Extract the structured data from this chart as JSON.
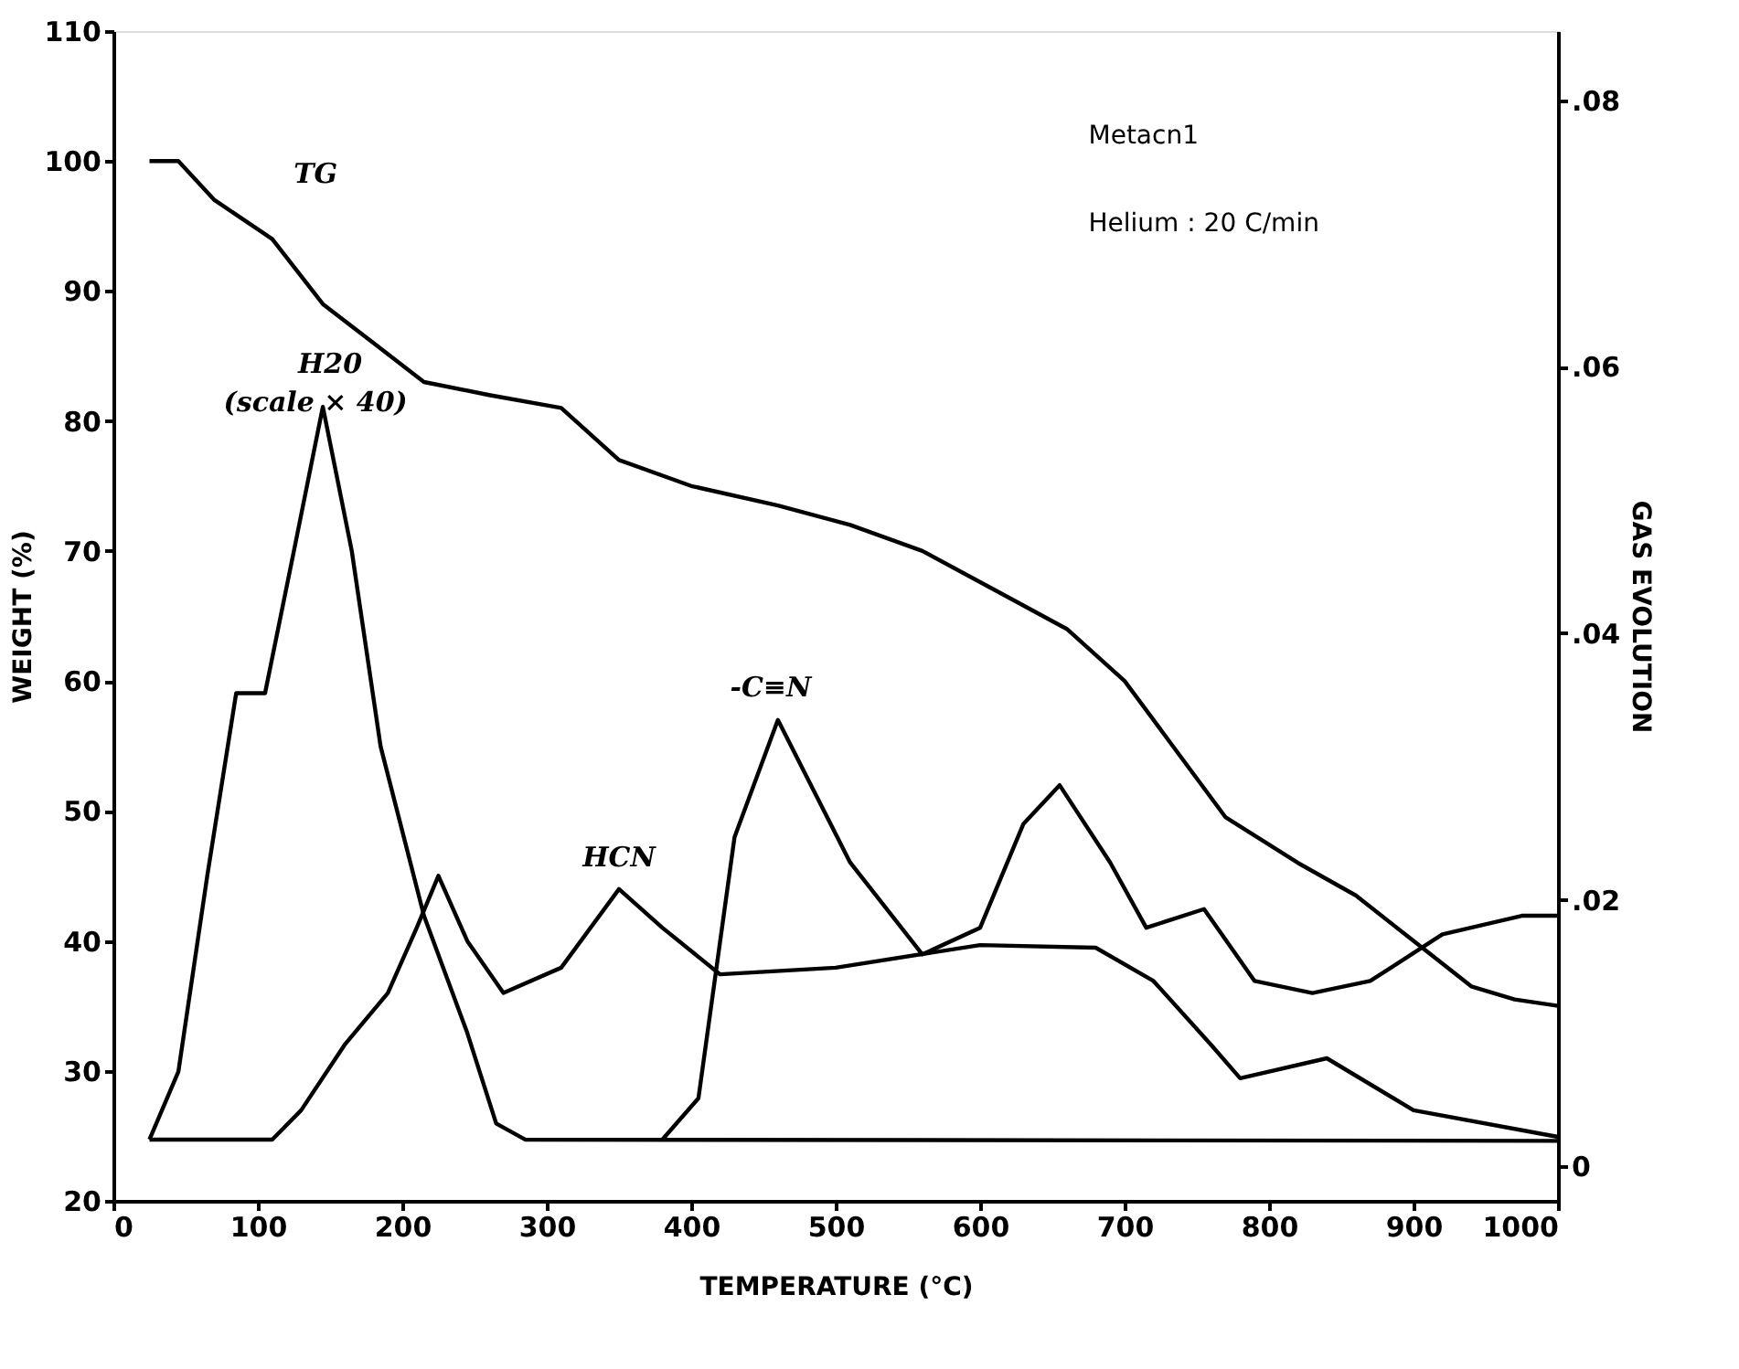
{
  "chart_data": {
    "type": "line",
    "xlabel": "TEMPERATURE (°C)",
    "ylabel": "WEIGHT (%)",
    "y2label": "GAS EVOLUTION",
    "xlim": [
      0,
      1000
    ],
    "xticks": [
      0,
      100,
      200,
      300,
      400,
      500,
      600,
      700,
      800,
      900,
      1000
    ],
    "ylim": [
      20,
      110
    ],
    "yticks": [
      20,
      30,
      40,
      50,
      60,
      70,
      80,
      90,
      100,
      110
    ],
    "y2lim": [
      -0.0026,
      0.0852
    ],
    "y2ticks": [
      0,
      {
        "value": 0.02,
        "label": ".02"
      },
      {
        "value": 0.04,
        "label": ".04"
      },
      {
        "value": 0.06,
        "label": ".06"
      },
      {
        "value": 0.08,
        "label": ".08"
      }
    ],
    "grid": false,
    "marker": "none",
    "line_style": "solid",
    "series": [
      {
        "color": "#000000",
        "x": [
          25,
          45,
          70,
          110,
          145,
          180,
          215,
          260,
          310,
          350,
          400,
          460,
          510,
          560,
          610,
          660,
          700,
          740,
          770,
          820,
          860,
          900,
          940,
          970,
          1000
        ],
        "values": [
          100,
          100,
          97,
          94,
          89,
          86,
          83,
          82,
          81,
          77,
          75,
          73.5,
          72,
          70,
          67,
          64,
          60,
          54,
          49.5,
          46,
          43.5,
          40,
          36.5,
          35.5,
          35
        ]
      },
      {
        "color": "#000000",
        "axis": "y2",
        "x": [
          25,
          45,
          65,
          85,
          105,
          125,
          145,
          165,
          185,
          215,
          245,
          265,
          285,
          1000
        ],
        "values": [
          0.002,
          0.0071,
          0.0218,
          0.0355,
          0.0355,
          0.0462,
          0.057,
          0.0462,
          0.0315,
          0.0188,
          0.01,
          0.0032,
          0.002,
          0.0019
        ]
      },
      {
        "color": "#000000",
        "axis": "y2",
        "x": [
          25,
          110,
          130,
          160,
          190,
          210,
          225,
          245,
          270,
          310,
          350,
          380,
          420,
          500,
          600,
          680,
          720,
          760,
          780,
          840,
          900,
          1000
        ],
        "values": [
          0.002,
          0.002,
          0.0042,
          0.0091,
          0.013,
          0.0179,
          0.0218,
          0.0169,
          0.013,
          0.0149,
          0.0208,
          0.0179,
          0.0144,
          0.0149,
          0.0166,
          0.0164,
          0.0139,
          0.0091,
          0.0066,
          0.0081,
          0.0042,
          0.0022
        ]
      },
      {
        "color": "#000000",
        "axis": "y2",
        "x": [
          380,
          405,
          430,
          460,
          510,
          560,
          600,
          630,
          655,
          690,
          715,
          755,
          790,
          830,
          870,
          920,
          975,
          1000
        ],
        "values": [
          0.002,
          0.0051,
          0.0247,
          0.0335,
          0.0228,
          0.0159,
          0.0179,
          0.0257,
          0.0286,
          0.0228,
          0.0179,
          0.0193,
          0.0139,
          0.013,
          0.0139,
          0.0174,
          0.0188,
          0.0188
        ]
      }
    ],
    "annotations": [
      "TG",
      "H20",
      "(scale × 40)",
      "HCN",
      "-C≡N",
      "Metacn1",
      "Helium : 20 C/min"
    ]
  }
}
